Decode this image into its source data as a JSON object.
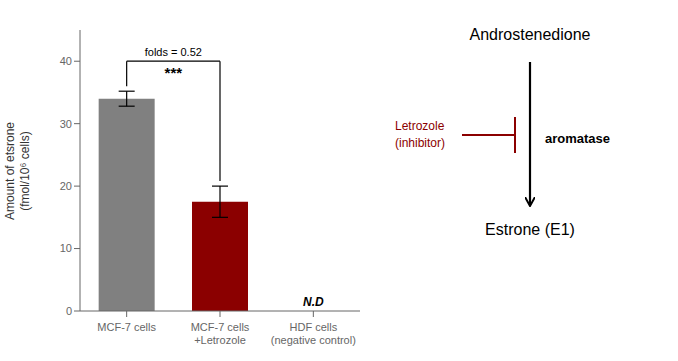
{
  "chart_data": {
    "type": "bar",
    "categories": [
      "MCF-7 cells",
      "MCF-7 cells\n+Letrozole",
      "HDF cells\n(negative control)"
    ],
    "values": [
      34.0,
      17.5,
      0
    ],
    "errors": [
      1.2,
      2.5,
      0
    ],
    "colors": [
      "#808080",
      "#8B0000",
      "#ffffff"
    ],
    "ylabel": "Amount of etsrone\n(fmol/10⁶ cells)",
    "ylim": [
      0,
      45
    ],
    "yticks": [
      0,
      10,
      20,
      30,
      40
    ],
    "annotations": [
      "folds = 0.52",
      "***",
      "N.D",
      "Androstenedione",
      "Letrozole\n(inhibitor)",
      "aromatase",
      "Estrone (E1)"
    ]
  }
}
